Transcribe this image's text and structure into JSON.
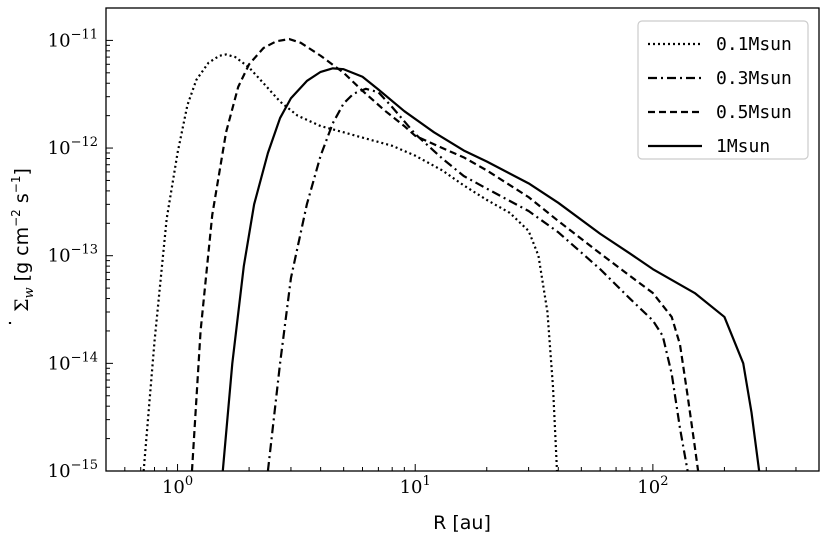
{
  "chart_data": {
    "type": "line",
    "xlabel": "R [au]",
    "ylabel": "Σ̇_w [g cm⁻² s⁻¹]",
    "ylabel_parts": {
      "symbol": "Σ",
      "subscript": "w",
      "units_prefix": "[g cm",
      "exp1": "−2",
      "units_mid": " s",
      "exp2": "−1",
      "units_suffix": "]"
    },
    "x_scale": "log",
    "y_scale": "log",
    "xlim": [
      0.5,
      500
    ],
    "ylim": [
      1e-15,
      2e-11
    ],
    "x_ticks": [
      {
        "value": 1,
        "base": "10",
        "exp": "0"
      },
      {
        "value": 10,
        "base": "10",
        "exp": "1"
      },
      {
        "value": 100,
        "base": "10",
        "exp": "2"
      }
    ],
    "y_ticks": [
      {
        "value": 1e-15,
        "base": "10",
        "exp": "−15"
      },
      {
        "value": 1e-14,
        "base": "10",
        "exp": "−14"
      },
      {
        "value": 1e-13,
        "base": "10",
        "exp": "−13"
      },
      {
        "value": 1e-12,
        "base": "10",
        "exp": "−12"
      },
      {
        "value": 1e-11,
        "base": "10",
        "exp": "−11"
      }
    ],
    "grid": false,
    "legend_position": "top-right",
    "series": [
      {
        "name": "0.1Msun",
        "style": "dotted",
        "color": "#000000",
        "points": [
          [
            0.72,
            1e-15
          ],
          [
            0.8,
            1.6e-14
          ],
          [
            0.9,
            2.2e-13
          ],
          [
            1.0,
            9e-13
          ],
          [
            1.1,
            2.5e-12
          ],
          [
            1.2,
            4.3e-12
          ],
          [
            1.35,
            6.2e-12
          ],
          [
            1.5,
            7.2e-12
          ],
          [
            1.6,
            7.4e-12
          ],
          [
            1.75,
            7e-12
          ],
          [
            2.0,
            5.6e-12
          ],
          [
            2.3,
            4e-12
          ],
          [
            2.7,
            2.7e-12
          ],
          [
            3.2,
            2e-12
          ],
          [
            4.0,
            1.6e-12
          ],
          [
            5.0,
            1.4e-12
          ],
          [
            6.0,
            1.25e-12
          ],
          [
            8.0,
            1.05e-12
          ],
          [
            10,
            8.5e-13
          ],
          [
            13,
            6.2e-13
          ],
          [
            16,
            4.5e-13
          ],
          [
            20,
            3.3e-13
          ],
          [
            25,
            2.5e-13
          ],
          [
            30,
            1.7e-13
          ],
          [
            33,
            1e-13
          ],
          [
            36,
            3e-14
          ],
          [
            38,
            6e-15
          ],
          [
            39.5,
            1e-15
          ]
        ]
      },
      {
        "name": "0.3Msun",
        "style": "dashdot",
        "color": "#000000",
        "points": [
          [
            2.4,
            1e-15
          ],
          [
            2.7,
            1e-14
          ],
          [
            3.0,
            6.2e-14
          ],
          [
            3.5,
            3e-13
          ],
          [
            4.0,
            8.5e-13
          ],
          [
            4.5,
            1.7e-12
          ],
          [
            5.0,
            2.6e-12
          ],
          [
            5.5,
            3.2e-12
          ],
          [
            6.2,
            3.55e-12
          ],
          [
            7.0,
            3.3e-12
          ],
          [
            8.0,
            2.4e-12
          ],
          [
            10,
            1.35e-12
          ],
          [
            13,
            8e-13
          ],
          [
            16,
            5.5e-13
          ],
          [
            20,
            4.2e-13
          ],
          [
            30,
            2.6e-13
          ],
          [
            40,
            1.65e-13
          ],
          [
            60,
            7.5e-14
          ],
          [
            80,
            4e-14
          ],
          [
            100,
            2.5e-14
          ],
          [
            110,
            1.8e-14
          ],
          [
            120,
            8e-15
          ],
          [
            130,
            2.5e-15
          ],
          [
            140,
            1e-15
          ]
        ]
      },
      {
        "name": "0.5Msun",
        "style": "dashed",
        "color": "#000000",
        "points": [
          [
            1.15,
            1e-15
          ],
          [
            1.25,
            2e-14
          ],
          [
            1.4,
            2.4e-13
          ],
          [
            1.6,
            1.4e-12
          ],
          [
            1.8,
            3.7e-12
          ],
          [
            2.0,
            6e-12
          ],
          [
            2.3,
            8.5e-12
          ],
          [
            2.6,
            9.8e-12
          ],
          [
            2.95,
            1.03e-11
          ],
          [
            3.3,
            9.5e-12
          ],
          [
            4.0,
            7.2e-12
          ],
          [
            5.0,
            5e-12
          ],
          [
            6.0,
            3.4e-12
          ],
          [
            7.5,
            2.2e-12
          ],
          [
            9,
            1.6e-12
          ],
          [
            10,
            1.3e-12
          ],
          [
            13,
            1e-12
          ],
          [
            16,
            8.2e-13
          ],
          [
            20,
            6.2e-13
          ],
          [
            30,
            3.5e-13
          ],
          [
            40,
            2.1e-13
          ],
          [
            60,
            1.05e-13
          ],
          [
            80,
            6.5e-14
          ],
          [
            100,
            4.5e-14
          ],
          [
            120,
            2.7e-14
          ],
          [
            130,
            1.5e-14
          ],
          [
            140,
            5e-15
          ],
          [
            150,
            1.7e-15
          ],
          [
            155,
            1e-15
          ]
        ]
      },
      {
        "name": "1Msun",
        "style": "solid",
        "color": "#000000",
        "points": [
          [
            1.55,
            1e-15
          ],
          [
            1.7,
            1e-14
          ],
          [
            1.9,
            8e-14
          ],
          [
            2.1,
            3e-13
          ],
          [
            2.4,
            9e-13
          ],
          [
            2.7,
            1.9e-12
          ],
          [
            3.0,
            2.9e-12
          ],
          [
            3.5,
            4.2e-12
          ],
          [
            4.0,
            5.1e-12
          ],
          [
            4.5,
            5.5e-12
          ],
          [
            5.0,
            5.4e-12
          ],
          [
            6.0,
            4.6e-12
          ],
          [
            7.0,
            3.5e-12
          ],
          [
            9,
            2.2e-12
          ],
          [
            12,
            1.4e-12
          ],
          [
            16,
            9.5e-13
          ],
          [
            20,
            7.5e-13
          ],
          [
            30,
            4.7e-13
          ],
          [
            40,
            3.1e-13
          ],
          [
            60,
            1.6e-13
          ],
          [
            80,
            1.05e-13
          ],
          [
            100,
            7.5e-14
          ],
          [
            150,
            4.5e-14
          ],
          [
            200,
            2.7e-14
          ],
          [
            240,
            1e-14
          ],
          [
            260,
            3.5e-15
          ],
          [
            280,
            1e-15
          ]
        ]
      }
    ]
  }
}
